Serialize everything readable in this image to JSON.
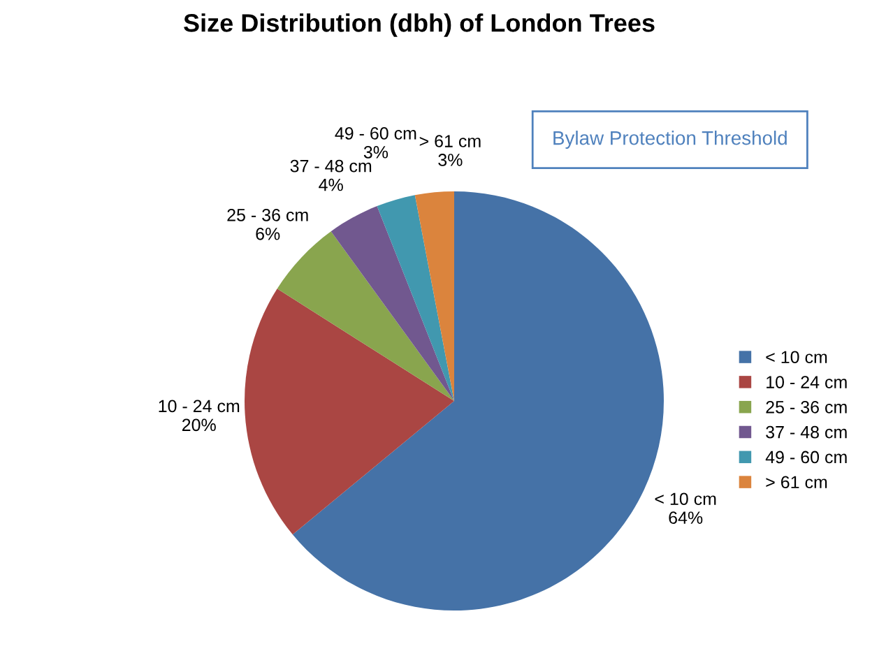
{
  "chart_data": {
    "type": "pie",
    "title": "Size Distribution (dbh) of London Trees",
    "categories": [
      "< 10 cm",
      "10 - 24 cm",
      "25 - 36 cm",
      "37 - 48 cm",
      "49 - 60 cm",
      "> 61 cm"
    ],
    "values": [
      64,
      20,
      6,
      4,
      3,
      3
    ],
    "value_labels": [
      "64%",
      "20%",
      "6%",
      "4%",
      "3%",
      "3%"
    ],
    "colors": [
      "#4572a7",
      "#aa4643",
      "#89a54e",
      "#71588f",
      "#4198af",
      "#db843d"
    ],
    "legend": "right",
    "annotations": [
      "Bylaw Protection Threshold"
    ]
  }
}
